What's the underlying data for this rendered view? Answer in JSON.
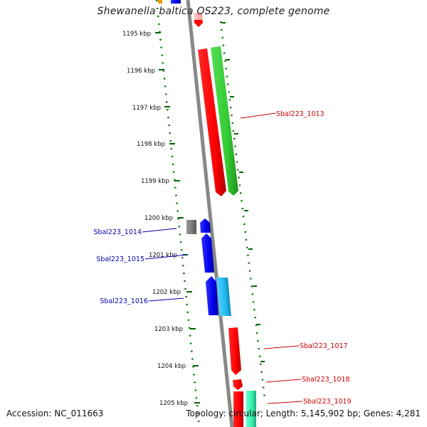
{
  "header": {
    "title": "Shewanella baltica OS223, complete genome"
  },
  "footer": {
    "accession": "Accession: NC_011663",
    "summary": "Topology: circular; Length: 5,145,902 bp; Genes: 4,281"
  },
  "scale": {
    "unit": "kbp",
    "ticks": [
      {
        "kbp": 1195,
        "label": "1195 kbp"
      },
      {
        "kbp": 1196,
        "label": "1196 kbp"
      },
      {
        "kbp": 1197,
        "label": "1197 kbp"
      },
      {
        "kbp": 1198,
        "label": "1198 kbp"
      },
      {
        "kbp": 1199,
        "label": "1199 kbp"
      },
      {
        "kbp": 1200,
        "label": "1200 kbp"
      },
      {
        "kbp": 1201,
        "label": "1201 kbp"
      },
      {
        "kbp": 1202,
        "label": "1202 kbp"
      },
      {
        "kbp": 1203,
        "label": "1203 kbp"
      },
      {
        "kbp": 1204,
        "label": "1204 kbp"
      },
      {
        "kbp": 1205,
        "label": "1205 kbp"
      }
    ]
  },
  "genes": [
    {
      "label": "Sbal223_1013",
      "strand": "reverse",
      "color": "#cc0000"
    },
    {
      "label": "Sbal223_1014",
      "strand": "forward",
      "color": "#0000aa"
    },
    {
      "label": "Sbal223_1015",
      "strand": "forward",
      "color": "#0000aa"
    },
    {
      "label": "Sbal223_1016",
      "strand": "forward",
      "color": "#0000aa"
    },
    {
      "label": "Sbal223_1017",
      "strand": "reverse",
      "color": "#cc0000"
    },
    {
      "label": "Sbal223_1018",
      "strand": "reverse",
      "color": "#cc0000"
    },
    {
      "label": "Sbal223_1019",
      "strand": "reverse",
      "color": "#cc0000"
    }
  ],
  "colors": {
    "backbone": "#888888",
    "ticks": "#006600",
    "forward_cds": "#0000ee",
    "reverse_cds": "#ee0000",
    "rna_green": "#33cc33",
    "cyan_feature": "#22bbee",
    "grey_feature": "#777777",
    "teal_feature": "#33eeaa",
    "orange_feature": "#ee9900"
  }
}
